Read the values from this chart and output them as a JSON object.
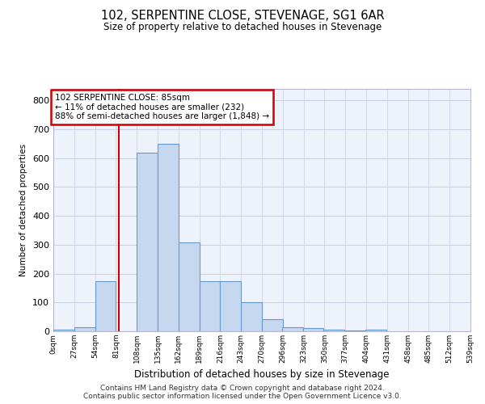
{
  "title": "102, SERPENTINE CLOSE, STEVENAGE, SG1 6AR",
  "subtitle": "Size of property relative to detached houses in Stevenage",
  "xlabel": "Distribution of detached houses by size in Stevenage",
  "ylabel": "Number of detached properties",
  "footer_line1": "Contains HM Land Registry data © Crown copyright and database right 2024.",
  "footer_line2": "Contains public sector information licensed under the Open Government Licence v3.0.",
  "annotation_line1": "102 SERPENTINE CLOSE: 85sqm",
  "annotation_line2": "← 11% of detached houses are smaller (232)",
  "annotation_line3": "88% of semi-detached houses are larger (1,848) →",
  "property_size": 85,
  "bin_starts": [
    0,
    27,
    54,
    81,
    108,
    135,
    162,
    189,
    216,
    243,
    270,
    296,
    323,
    350,
    377,
    404,
    431,
    458,
    485,
    512
  ],
  "bar_heights": [
    5,
    14,
    175,
    0,
    620,
    650,
    307,
    175,
    175,
    100,
    42,
    15,
    10,
    5,
    2,
    7,
    0,
    0,
    0,
    0
  ],
  "bar_color": "#c5d8f0",
  "bar_edge_color": "#6699cc",
  "vline_color": "#cc0000",
  "annotation_box_edgecolor": "#cc0000",
  "background_color": "#eef2fb",
  "grid_color": "#c5cfe0",
  "ylim_max": 840,
  "yticks": [
    0,
    100,
    200,
    300,
    400,
    500,
    600,
    700,
    800
  ],
  "tick_labels": [
    "0sqm",
    "27sqm",
    "54sqm",
    "81sqm",
    "108sqm",
    "135sqm",
    "162sqm",
    "189sqm",
    "216sqm",
    "243sqm",
    "270sqm",
    "296sqm",
    "323sqm",
    "350sqm",
    "377sqm",
    "404sqm",
    "431sqm",
    "458sqm",
    "485sqm",
    "512sqm",
    "539sqm"
  ],
  "xlim_max": 539,
  "bin_width": 27
}
